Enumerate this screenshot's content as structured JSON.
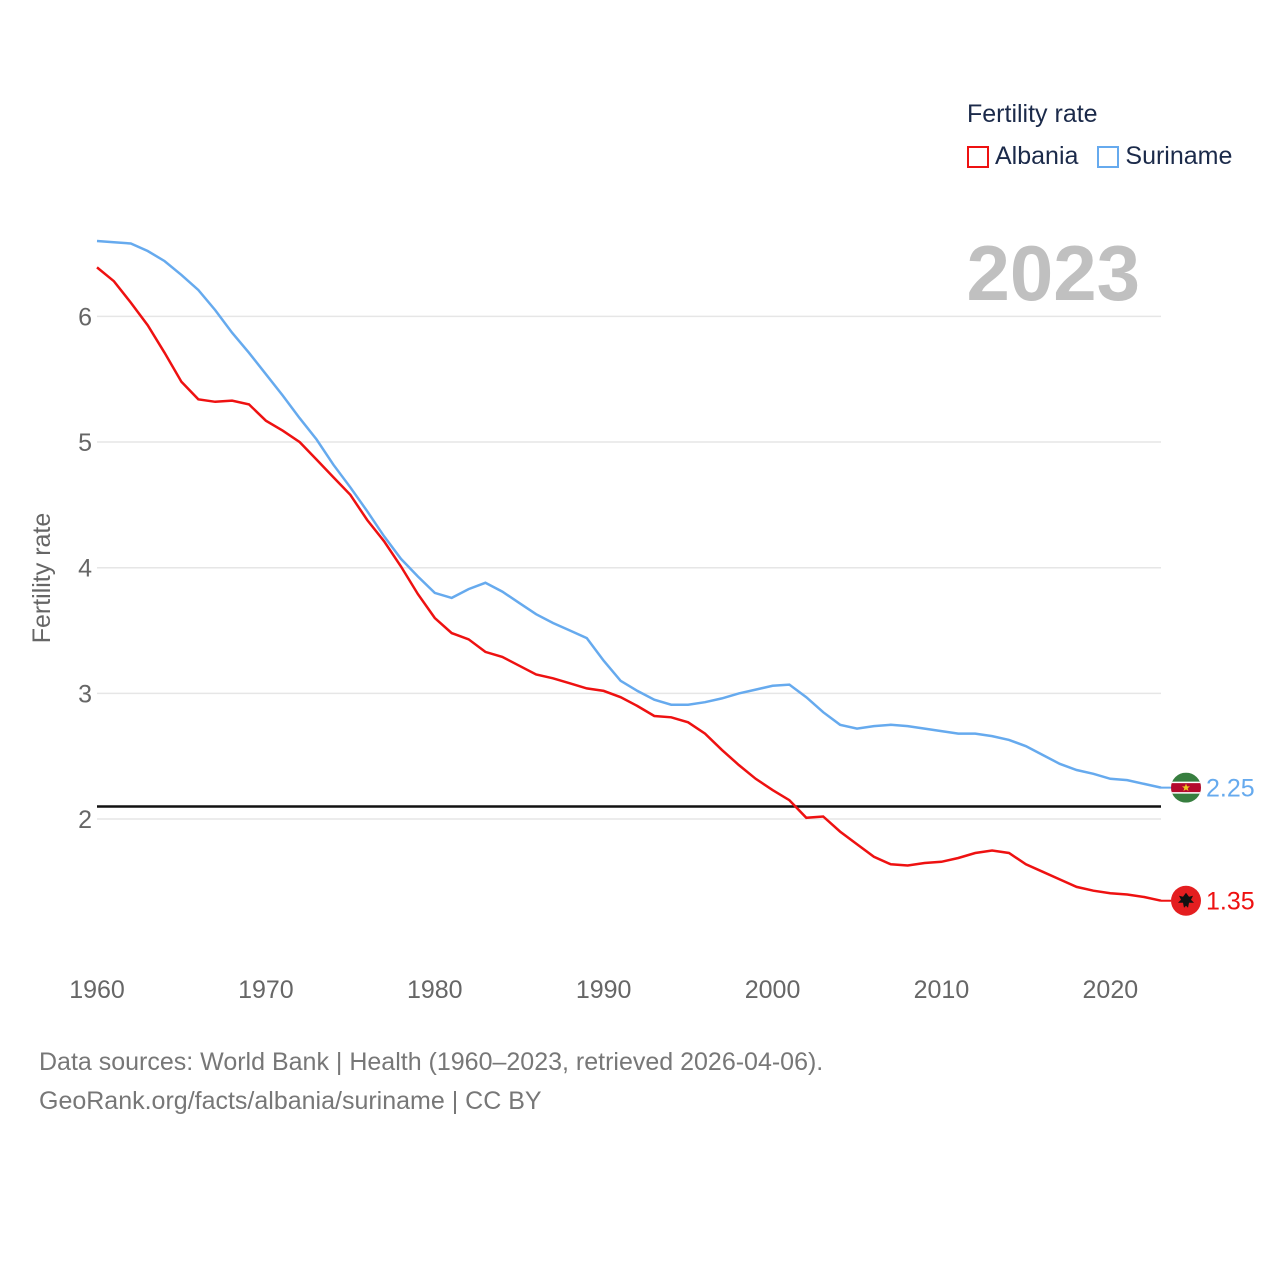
{
  "legend": {
    "title": "Fertility rate",
    "albania_label": "Albania",
    "suriname_label": "Suriname"
  },
  "footer": {
    "line1": "Data sources: World Bank | Health (1960–2023, retrieved 2026-04-06).",
    "line2": "GeoRank.org/facts/albania/suriname | CC BY"
  },
  "colors": {
    "albania": "#ee1111",
    "suriname": "#66aaee",
    "grid": "#e6e6e6",
    "reference": "#111111",
    "tick": "#666666",
    "year_watermark": "#c0c0c0"
  },
  "icons": {
    "albania_flag": "albania-flag-icon",
    "suriname_flag": "suriname-flag-icon"
  },
  "chart_data": {
    "type": "line",
    "title": "Fertility rate",
    "year_watermark": "2023",
    "xlabel": "",
    "ylabel": "Fertility rate",
    "xlim": [
      1960,
      2023
    ],
    "ylim": [
      0.95,
      6.95
    ],
    "x_ticks": [
      1960,
      1970,
      1980,
      1990,
      2000,
      2010,
      2020
    ],
    "y_ticks": [
      2,
      3,
      4,
      5,
      6
    ],
    "grid": true,
    "legend_position": "top-right",
    "reference_line": {
      "y": 2.1
    },
    "x": [
      1960,
      1961,
      1962,
      1963,
      1964,
      1965,
      1966,
      1967,
      1968,
      1969,
      1970,
      1971,
      1972,
      1973,
      1974,
      1975,
      1976,
      1977,
      1978,
      1979,
      1980,
      1981,
      1982,
      1983,
      1984,
      1985,
      1986,
      1987,
      1988,
      1989,
      1990,
      1991,
      1992,
      1993,
      1994,
      1995,
      1996,
      1997,
      1998,
      1999,
      2000,
      2001,
      2002,
      2003,
      2004,
      2005,
      2006,
      2007,
      2008,
      2009,
      2010,
      2011,
      2012,
      2013,
      2014,
      2015,
      2016,
      2017,
      2018,
      2019,
      2020,
      2021,
      2022,
      2023
    ],
    "series": [
      {
        "name": "Albania",
        "end_label": "1.35",
        "values": [
          6.39,
          6.28,
          6.11,
          5.93,
          5.71,
          5.48,
          5.34,
          5.32,
          5.33,
          5.3,
          5.17,
          5.09,
          5.0,
          4.86,
          4.72,
          4.58,
          4.38,
          4.21,
          4.01,
          3.79,
          3.6,
          3.48,
          3.43,
          3.33,
          3.29,
          3.22,
          3.15,
          3.12,
          3.08,
          3.04,
          3.02,
          2.97,
          2.9,
          2.82,
          2.81,
          2.77,
          2.68,
          2.55,
          2.43,
          2.32,
          2.23,
          2.15,
          2.01,
          2.02,
          1.9,
          1.8,
          1.7,
          1.64,
          1.63,
          1.65,
          1.66,
          1.69,
          1.73,
          1.75,
          1.73,
          1.64,
          1.58,
          1.52,
          1.46,
          1.43,
          1.41,
          1.4,
          1.38,
          1.35
        ]
      },
      {
        "name": "Suriname",
        "end_label": "2.25",
        "values": [
          6.6,
          6.59,
          6.58,
          6.52,
          6.44,
          6.33,
          6.21,
          6.05,
          5.87,
          5.71,
          5.54,
          5.37,
          5.19,
          5.02,
          4.82,
          4.64,
          4.45,
          4.25,
          4.07,
          3.93,
          3.8,
          3.76,
          3.83,
          3.88,
          3.81,
          3.72,
          3.63,
          3.56,
          3.5,
          3.44,
          3.26,
          3.1,
          3.02,
          2.95,
          2.91,
          2.91,
          2.93,
          2.96,
          3.0,
          3.03,
          3.06,
          3.07,
          2.97,
          2.85,
          2.75,
          2.72,
          2.74,
          2.75,
          2.74,
          2.72,
          2.7,
          2.68,
          2.68,
          2.66,
          2.63,
          2.58,
          2.51,
          2.44,
          2.39,
          2.36,
          2.32,
          2.31,
          2.28,
          2.25
        ]
      }
    ]
  }
}
